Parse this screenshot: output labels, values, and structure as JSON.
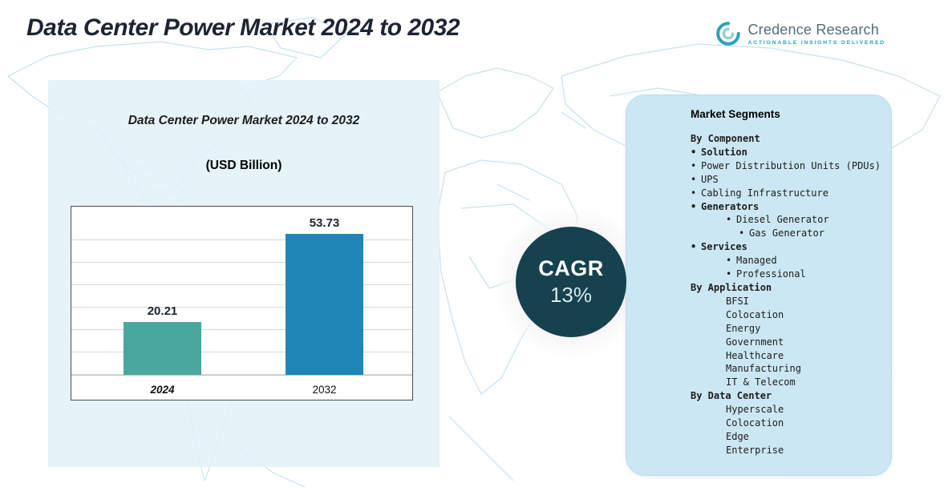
{
  "page": {
    "title": "Data Center Power Market 2024 to 2032"
  },
  "logo": {
    "name": "Credence Research",
    "tagline": "Actionable Insights Delivered"
  },
  "chart_panel": {
    "title": "Data Center Power Market 2024 to 2032",
    "subtitle": "(USD Billion)"
  },
  "chart_data": {
    "type": "bar",
    "title": "Data Center Power Market 2024 to 2032",
    "unit": "USD Billion",
    "categories": [
      "2024",
      "2032"
    ],
    "values": [
      20.21,
      53.73
    ],
    "value_labels": [
      "20.21",
      "53.73"
    ],
    "bar_colors": [
      "#4aa79f",
      "#1f86b8"
    ],
    "ylim": [
      0,
      60
    ],
    "grid": true,
    "legend": false
  },
  "cagr": {
    "label": "CAGR",
    "value": "13%",
    "circle_color": "#16424f"
  },
  "segments": {
    "title": "Market Segments",
    "items": [
      {
        "label": "By Component",
        "bold": true,
        "bullet": false,
        "indent": 0
      },
      {
        "label": "Solution",
        "bold": true,
        "bullet": true,
        "indent": 0
      },
      {
        "label": "Power Distribution Units (PDUs)",
        "bold": false,
        "bullet": true,
        "indent": 0
      },
      {
        "label": "UPS",
        "bold": false,
        "bullet": true,
        "indent": 0
      },
      {
        "label": "Cabling Infrastructure",
        "bold": false,
        "bullet": true,
        "indent": 0
      },
      {
        "label": "Generators",
        "bold": true,
        "bullet": true,
        "indent": 0
      },
      {
        "label": "Diesel Generator",
        "bold": false,
        "bullet": true,
        "indent": 2
      },
      {
        "label": "Gas Generator",
        "bold": false,
        "bullet": true,
        "indent": 3
      },
      {
        "label": "Services",
        "bold": true,
        "bullet": true,
        "indent": 0
      },
      {
        "label": "Managed",
        "bold": false,
        "bullet": true,
        "indent": 2
      },
      {
        "label": "Professional",
        "bold": false,
        "bullet": true,
        "indent": 2
      },
      {
        "label": "By Application",
        "bold": true,
        "bullet": false,
        "indent": 0
      },
      {
        "label": "BFSI",
        "bold": false,
        "bullet": false,
        "indent": 2
      },
      {
        "label": "Colocation",
        "bold": false,
        "bullet": false,
        "indent": 2
      },
      {
        "label": "Energy",
        "bold": false,
        "bullet": false,
        "indent": 2
      },
      {
        "label": "Government",
        "bold": false,
        "bullet": false,
        "indent": 2
      },
      {
        "label": "Healthcare",
        "bold": false,
        "bullet": false,
        "indent": 2
      },
      {
        "label": "Manufacturing",
        "bold": false,
        "bullet": false,
        "indent": 2
      },
      {
        "label": "IT & Telecom",
        "bold": false,
        "bullet": false,
        "indent": 2
      },
      {
        "label": "By Data Center",
        "bold": true,
        "bullet": false,
        "indent": 0
      },
      {
        "label": "Hyperscale",
        "bold": false,
        "bullet": false,
        "indent": 2
      },
      {
        "label": "Colocation",
        "bold": false,
        "bullet": false,
        "indent": 2
      },
      {
        "label": "Edge",
        "bold": false,
        "bullet": false,
        "indent": 2
      },
      {
        "label": "Enterprise",
        "bold": false,
        "bullet": false,
        "indent": 2
      }
    ]
  }
}
